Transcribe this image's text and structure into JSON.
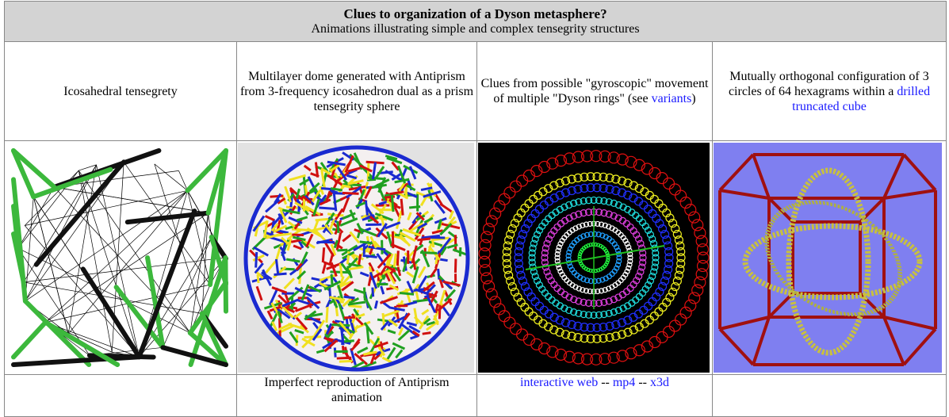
{
  "header": {
    "title": "Clues to organization of a Dyson metasphere?",
    "subtitle": "Animations illustrating simple and complex tensegrity structures"
  },
  "captions": [
    [
      {
        "text": "Icosahedral tensegrety",
        "link": false
      }
    ],
    [
      {
        "text": "Multilayer dome generated with Antiprism from 3-frequency icosahedron dual as a prism tensegrity sphere",
        "link": false
      }
    ],
    [
      {
        "text": "Clues from possible \"gyroscopic\" movement of multiple \"Dyson rings\" (see ",
        "link": false
      },
      {
        "text": "variants",
        "link": true
      },
      {
        "text": ")",
        "link": false
      }
    ],
    [
      {
        "text": "Mutually orthogonal configuration of  3 circles of 64 hexagrams within a ",
        "link": false
      },
      {
        "text": "drilled truncated cube",
        "link": true
      }
    ]
  ],
  "footer": [
    [],
    [
      {
        "text": "Imperfect reproduction of Antiprism animation",
        "link": false
      }
    ],
    [
      {
        "text": "interactive web",
        "link": true
      },
      {
        "text": " -- ",
        "link": false
      },
      {
        "text": "mp4",
        "link": true
      },
      {
        "text": " -- ",
        "link": false
      },
      {
        "text": "x3d",
        "link": true
      }
    ],
    []
  ]
}
